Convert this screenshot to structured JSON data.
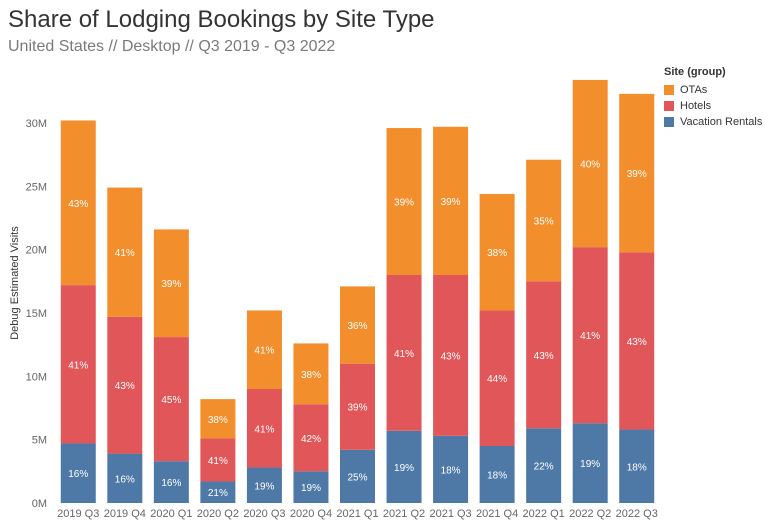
{
  "header": {
    "title": "Share of Lodging Bookings by Site Type",
    "subtitle": "United States // Desktop // Q3 2019 - Q3 2022"
  },
  "legend": {
    "title": "Site (group)",
    "items": [
      {
        "label": "OTAs",
        "color": "#F28E2B"
      },
      {
        "label": "Hotels",
        "color": "#E15759"
      },
      {
        "label": "Vacation Rentals",
        "color": "#4E79A7"
      }
    ]
  },
  "chart_data": {
    "type": "bar",
    "stacked": true,
    "title": "",
    "xlabel": "",
    "ylabel": "Debug Estimated Visits",
    "ylim": [
      0,
      33000000
    ],
    "yticks": [
      0,
      5000000,
      10000000,
      15000000,
      20000000,
      25000000,
      30000000
    ],
    "ytick_labels": [
      "0M",
      "5M",
      "10M",
      "15M",
      "20M",
      "25M",
      "30M"
    ],
    "categories": [
      "2019 Q3",
      "2019 Q4",
      "2020 Q1",
      "2020 Q2",
      "2020 Q3",
      "2020 Q4",
      "2021 Q1",
      "2021 Q2",
      "2021 Q3",
      "2021 Q4",
      "2022 Q1",
      "2022 Q2",
      "2022 Q3"
    ],
    "series": [
      {
        "name": "Vacation Rentals",
        "color": "#4E79A7",
        "values": [
          4700000,
          3900000,
          3300000,
          1700000,
          2800000,
          2500000,
          4200000,
          5700000,
          5300000,
          4500000,
          5900000,
          6300000,
          5800000
        ],
        "labels": [
          "16%",
          "16%",
          "16%",
          "21%",
          "19%",
          "19%",
          "25%",
          "19%",
          "18%",
          "18%",
          "22%",
          "19%",
          "18%"
        ]
      },
      {
        "name": "Hotels",
        "color": "#E15759",
        "values": [
          12500000,
          10800000,
          9800000,
          3400000,
          6200000,
          5300000,
          6800000,
          12300000,
          12700000,
          10700000,
          11600000,
          13900000,
          14000000
        ],
        "labels": [
          "41%",
          "43%",
          "45%",
          "41%",
          "41%",
          "42%",
          "39%",
          "41%",
          "43%",
          "44%",
          "43%",
          "41%",
          "43%"
        ]
      },
      {
        "name": "OTAs",
        "color": "#F28E2B",
        "values": [
          13000000,
          10200000,
          8500000,
          3100000,
          6200000,
          4800000,
          6100000,
          11600000,
          11700000,
          9200000,
          9600000,
          13200000,
          12500000
        ],
        "labels": [
          "43%",
          "41%",
          "39%",
          "38%",
          "41%",
          "38%",
          "36%",
          "39%",
          "39%",
          "38%",
          "35%",
          "40%",
          "39%"
        ]
      }
    ]
  }
}
